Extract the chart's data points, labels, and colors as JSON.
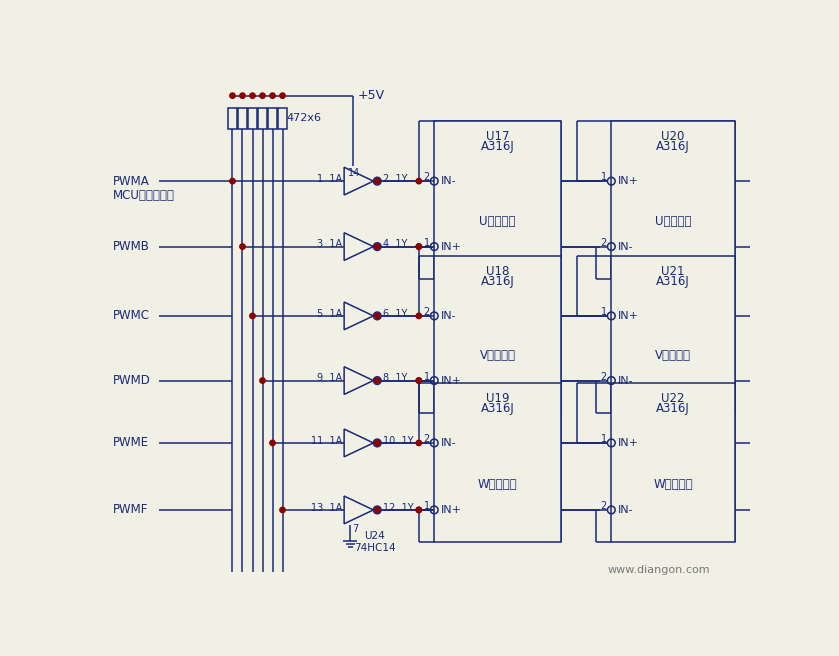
{
  "bg_color": "#f0f0e5",
  "line_color": "#1a2878",
  "dot_color": "#8b0000",
  "text_color": "#1a2878",
  "watermark": "www.diangon.com",
  "pwm_labels": [
    "PWMA",
    "PWMB",
    "PWMC",
    "PWMD",
    "PWME",
    "PWMF"
  ],
  "buf_in_labels": [
    "1  1A",
    "3  1A",
    "5  1A",
    "9  1A",
    "11  1A",
    "13  1A"
  ],
  "buf_out_labels": [
    "2  1Y",
    "4  1Y",
    "6  1Y",
    "8  1Y",
    "10  1Y",
    "12  1Y"
  ],
  "pin14_label": "14",
  "ic_upper_names": [
    "U17",
    "U18",
    "U19"
  ],
  "ic_lower_names": [
    "U20",
    "U21",
    "U22"
  ],
  "ic_model": "A316J",
  "ic_upper_signal": [
    "上臂脉冲",
    "上臂脉冲",
    "上臂脉冲"
  ],
  "ic_lower_signal": [
    "下臂脉冲",
    "下臂脉冲",
    "下臂脉冲"
  ],
  "ic_upper_phase": [
    "U",
    "V",
    "W"
  ],
  "ic_lower_phase": [
    "U",
    "V",
    "W"
  ],
  "vcc": "+5V",
  "res_label": "472x6",
  "mcu_label": "MCU输出六脉冲",
  "u24_label": "U24\n74HC14",
  "u24_pin": "7"
}
